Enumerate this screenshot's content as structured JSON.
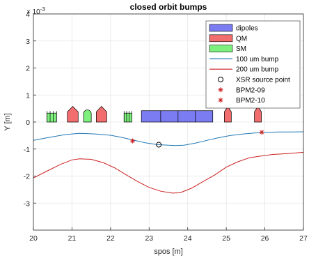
{
  "chart_data": {
    "type": "line",
    "title": "closed orbit bumps",
    "xlabel": "spos [m]",
    "ylabel": "Y [m]",
    "y_exponent_label": "× 10",
    "y_exponent_power": "-3",
    "xlim": [
      20,
      27
    ],
    "ylim": [
      -4,
      4
    ],
    "x_ticks": [
      20,
      21,
      22,
      23,
      24,
      25,
      26,
      27
    ],
    "y_ticks": [
      -3,
      -2,
      -1,
      0,
      1,
      2,
      3,
      4
    ],
    "grid": true,
    "legend_position": "top-right",
    "legend": [
      {
        "label": "dipoles",
        "kind": "patch",
        "color": "#7b7bf2"
      },
      {
        "label": "QM",
        "kind": "patch",
        "color": "#f26d6d"
      },
      {
        "label": "SM",
        "kind": "patch",
        "color": "#7df07d"
      },
      {
        "label": "100 um bump",
        "kind": "line",
        "color": "#1f77b4"
      },
      {
        "label": "200 um bump",
        "kind": "line",
        "color": "#cc1f1f"
      },
      {
        "label": "XSR source point",
        "kind": "circle",
        "color": "#000000"
      },
      {
        "label": "BPM2-09",
        "kind": "asterisk",
        "color": "#cc1f1f"
      },
      {
        "label": "BPM2-10",
        "kind": "asterisk",
        "color": "#cc1f1f"
      }
    ],
    "elements": {
      "dipoles": [
        [
          22.8,
          23.3
        ],
        [
          23.3,
          23.75
        ],
        [
          23.75,
          24.2
        ],
        [
          24.2,
          24.65
        ]
      ],
      "dipole_height": 0.42,
      "qm": [
        [
          20.88,
          21.16
        ],
        [
          21.63,
          21.9
        ],
        [
          24.95,
          25.13
        ],
        [
          25.73,
          25.91
        ]
      ],
      "qm_height": 0.58,
      "sm": [
        [
          21.3,
          21.5
        ]
      ],
      "sm_height": 0.45,
      "small_markers": [
        [
          20.35,
          20.6
        ],
        [
          22.35,
          22.55
        ]
      ],
      "small_height": 0.33
    },
    "series": [
      {
        "name": "100 um bump",
        "color": "#1f77b4",
        "x": [
          20,
          20.4,
          20.8,
          21,
          21.2,
          21.6,
          22,
          22.3,
          22.6,
          22.9,
          23.2,
          23.5,
          23.7,
          23.9,
          24.2,
          24.5,
          24.8,
          25.1,
          25.4,
          25.7,
          26,
          26.4,
          26.7,
          27
        ],
        "y": [
          -0.68,
          -0.57,
          -0.47,
          -0.44,
          -0.42,
          -0.44,
          -0.49,
          -0.57,
          -0.67,
          -0.77,
          -0.83,
          -0.86,
          -0.87,
          -0.86,
          -0.78,
          -0.68,
          -0.58,
          -0.5,
          -0.45,
          -0.41,
          -0.38,
          -0.37,
          -0.37,
          -0.36
        ]
      },
      {
        "name": "200 um bump",
        "color": "#cc1f1f",
        "x": [
          20,
          20.4,
          20.7,
          21,
          21.2,
          21.5,
          21.8,
          22.1,
          22.4,
          22.7,
          23,
          23.3,
          23.6,
          23.8,
          24.1,
          24.4,
          24.7,
          25,
          25.3,
          25.6,
          25.9,
          26.2,
          26.6,
          27
        ],
        "y": [
          -2.07,
          -1.78,
          -1.57,
          -1.4,
          -1.36,
          -1.38,
          -1.5,
          -1.69,
          -1.95,
          -2.2,
          -2.42,
          -2.56,
          -2.63,
          -2.62,
          -2.45,
          -2.2,
          -1.96,
          -1.67,
          -1.47,
          -1.32,
          -1.26,
          -1.2,
          -1.17,
          -1.12
        ]
      }
    ],
    "points": [
      {
        "name": "XSR source point",
        "marker": "circle",
        "color": "#000000",
        "x": 23.25,
        "y": -0.84
      },
      {
        "name": "BPM2-09",
        "marker": "asterisk",
        "color": "#cc1f1f",
        "x": 22.57,
        "y": -0.7
      },
      {
        "name": "BPM2-10",
        "marker": "asterisk",
        "color": "#cc1f1f",
        "x": 25.92,
        "y": -0.38
      }
    ]
  }
}
